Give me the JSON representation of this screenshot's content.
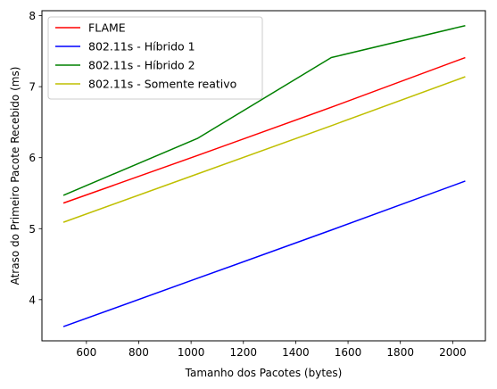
{
  "chart_data": {
    "type": "line",
    "xlabel": "Tamanho dos Pacotes (bytes)",
    "ylabel": "Atraso do Primeiro Pacote Recebido (ms)",
    "xlim": [
      430,
      2125
    ],
    "ylim": [
      3.42,
      8.07
    ],
    "xticks": [
      600,
      800,
      1000,
      1200,
      1400,
      1600,
      1800,
      2000
    ],
    "yticks": [
      4,
      5,
      6,
      7,
      8
    ],
    "grid": false,
    "legend_position": "top-left",
    "series": [
      {
        "name": "FLAME",
        "color": "#ff0000",
        "x": [
          512,
          1024,
          1536,
          2048
        ],
        "y": [
          5.36,
          6.03,
          6.71,
          7.41
        ]
      },
      {
        "name": "802.11s - Híbrido 1",
        "color": "#0000ff",
        "x": [
          512,
          1024,
          1536,
          2048
        ],
        "y": [
          3.62,
          4.3,
          4.98,
          5.67
        ]
      },
      {
        "name": "802.11s - Híbrido 2",
        "color": "#008000",
        "x": [
          512,
          1024,
          1536,
          2048
        ],
        "y": [
          5.47,
          6.27,
          7.41,
          7.86
        ]
      },
      {
        "name": "802.11s - Somente reativo",
        "color": "#bfbf00",
        "x": [
          512,
          1024,
          1536,
          2048
        ],
        "y": [
          5.09,
          5.77,
          6.45,
          7.14
        ]
      }
    ]
  }
}
